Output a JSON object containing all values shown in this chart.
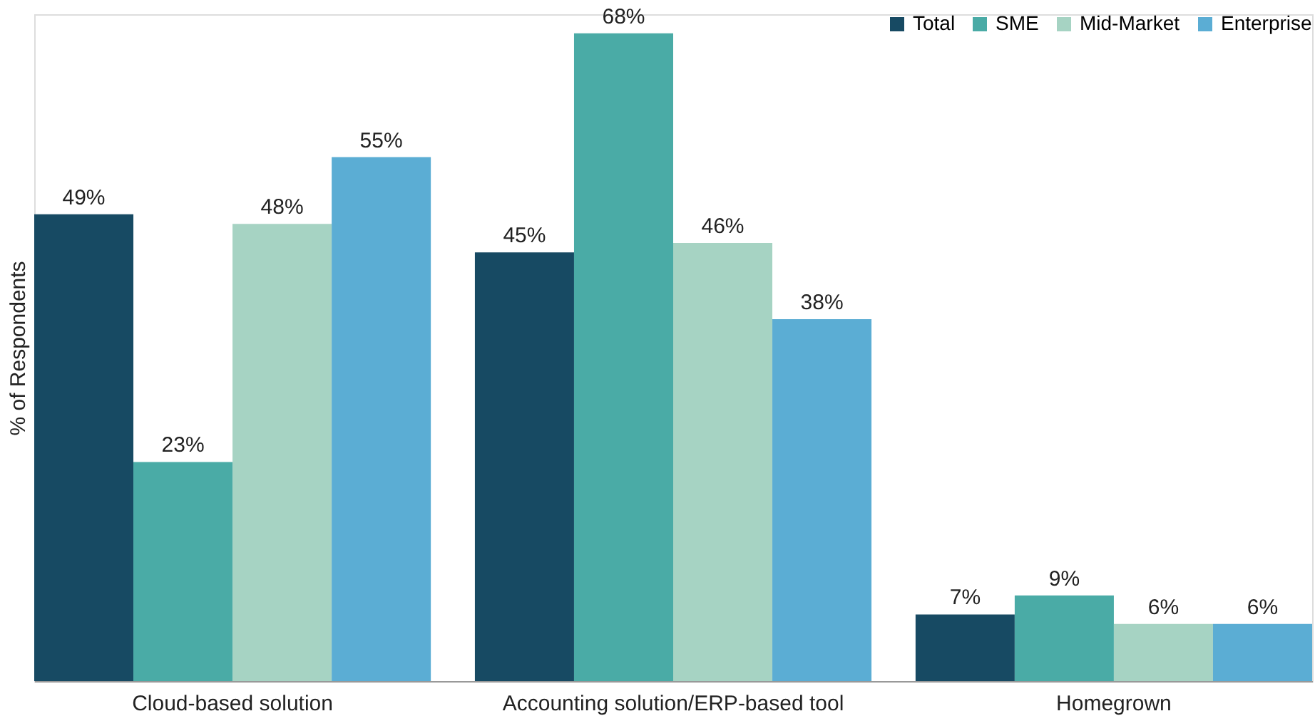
{
  "chart_data": {
    "type": "bar",
    "ylabel": "% of Respondents",
    "categories": [
      "Cloud-based solution",
      "Accounting solution/ERP-based tool",
      "Homegrown"
    ],
    "series": [
      {
        "name": "Total",
        "color": "#174a63",
        "values": [
          49,
          45,
          7
        ],
        "value_labels": [
          "49%",
          "45%",
          "7%"
        ]
      },
      {
        "name": "SME",
        "color": "#4aaba6",
        "values": [
          23,
          68,
          9
        ],
        "value_labels": [
          "23%",
          "68%",
          "9%"
        ]
      },
      {
        "name": "Mid-Market",
        "color": "#a6d3c3",
        "values": [
          48,
          46,
          6
        ],
        "value_labels": [
          "48%",
          "46%",
          "6%"
        ]
      },
      {
        "name": "Enterprise",
        "color": "#5badd4",
        "values": [
          55,
          38,
          6
        ],
        "value_labels": [
          "55%",
          "38%",
          "6%"
        ]
      }
    ],
    "ylim": [
      0,
      70
    ],
    "grid": false,
    "legend": "top right",
    "tick_labels": "x"
  }
}
